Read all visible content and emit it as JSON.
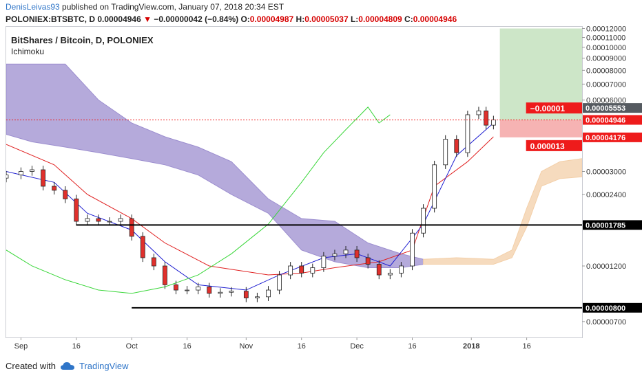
{
  "header": {
    "user": "DenisLeivas93",
    "published_text": " published on TradingView.com, January 07, 2018 20:34 EST",
    "symbol": "POLONIEX:BTSBTC, D",
    "last": "0.00004946",
    "change": "−0.00000042 (−0.84%)",
    "o_label": "O:",
    "o": "0.00004987",
    "h_label": "H:",
    "h": "0.00005037",
    "l_label": "L:",
    "l": "0.00004809",
    "c_label": "C:",
    "c": "0.00004946"
  },
  "footer": {
    "created_with": "Created with",
    "brand": "TradingView"
  },
  "colors": {
    "up": "#ffffff",
    "down": "#e0302c",
    "cloud_bear": "#9c8ecf",
    "cloud_bull": "#f3cfa8",
    "tenkan": "#1f1fd1",
    "kijun": "#e02020",
    "chikou": "#38d638",
    "tp_zone": "#cde6c8",
    "sl_zone": "#f6b3b3",
    "label_red": "#ee1b1b",
    "label_gray": "#555a60"
  },
  "chart_data": {
    "type": "candlestick",
    "title": "BitShares / Bitcoin, D, POLONIEX",
    "indicator": "Ichimoku",
    "ylim": [
      6e-06,
      0.000122
    ],
    "y_scale": "log",
    "y_ticks": [
      "0.00012000",
      "0.00011000",
      "0.00010000",
      "0.00009000",
      "0.00008000",
      "0.00007000",
      "0.00006000",
      "0.00003000",
      "0.00002400",
      "0.00001200",
      "0.00000700"
    ],
    "x_ticks": [
      {
        "label": "Sep",
        "date": "2017-09-01"
      },
      {
        "label": "16",
        "date": "2017-09-16"
      },
      {
        "label": "Oct",
        "date": "2017-10-01"
      },
      {
        "label": "16",
        "date": "2017-10-16"
      },
      {
        "label": "Nov",
        "date": "2017-11-01"
      },
      {
        "label": "16",
        "date": "2017-11-16"
      },
      {
        "label": "Dec",
        "date": "2017-12-01"
      },
      {
        "label": "16",
        "date": "2017-12-16"
      },
      {
        "label": "2018",
        "date": "2018-01-01"
      },
      {
        "label": "16",
        "date": "2018-01-16"
      }
    ],
    "x_range": [
      "2017-08-28",
      "2018-01-31"
    ],
    "close_series": [
      [
        "2017-08-28",
        2.9e-05
      ],
      [
        "2017-09-01",
        3e-05
      ],
      [
        "2017-09-04",
        3.05e-05
      ],
      [
        "2017-09-07",
        2.6e-05
      ],
      [
        "2017-09-10",
        2.5e-05
      ],
      [
        "2017-09-13",
        2.3e-05
      ],
      [
        "2017-09-16",
        1.85e-05
      ],
      [
        "2017-09-19",
        1.9e-05
      ],
      [
        "2017-09-22",
        1.85e-05
      ],
      [
        "2017-09-25",
        1.85e-05
      ],
      [
        "2017-09-28",
        1.9e-05
      ],
      [
        "2017-10-01",
        1.6e-05
      ],
      [
        "2017-10-04",
        1.3e-05
      ],
      [
        "2017-10-07",
        1.2e-05
      ],
      [
        "2017-10-10",
        1e-05
      ],
      [
        "2017-10-13",
        9.5e-06
      ],
      [
        "2017-10-16",
        9.5e-06
      ],
      [
        "2017-10-19",
        9.8e-06
      ],
      [
        "2017-10-22",
        9.2e-06
      ],
      [
        "2017-10-25",
        9.3e-06
      ],
      [
        "2017-10-28",
        9.4e-06
      ],
      [
        "2017-11-01",
        8.8e-06
      ],
      [
        "2017-11-04",
        8.9e-06
      ],
      [
        "2017-11-07",
        9.5e-06
      ],
      [
        "2017-11-10",
        1.1e-05
      ],
      [
        "2017-11-13",
        1.2e-05
      ],
      [
        "2017-11-16",
        1.12e-05
      ],
      [
        "2017-11-19",
        1.18e-05
      ],
      [
        "2017-11-22",
        1.32e-05
      ],
      [
        "2017-11-25",
        1.35e-05
      ],
      [
        "2017-11-28",
        1.4e-05
      ],
      [
        "2017-12-01",
        1.3e-05
      ],
      [
        "2017-12-04",
        1.22e-05
      ],
      [
        "2017-12-07",
        1.1e-05
      ],
      [
        "2017-12-10",
        1.12e-05
      ],
      [
        "2017-12-13",
        1.2e-05
      ],
      [
        "2017-12-16",
        1.65e-05
      ],
      [
        "2017-12-19",
        2.1e-05
      ],
      [
        "2017-12-22",
        3.2e-05
      ],
      [
        "2017-12-25",
        4.1e-05
      ],
      [
        "2017-12-28",
        3.6e-05
      ],
      [
        "2017-12-31",
        5.2e-05
      ],
      [
        "2018-01-03",
        5.4e-05
      ],
      [
        "2018-01-05",
        4.7e-05
      ],
      [
        "2018-01-07",
        4.95e-05
      ]
    ],
    "cloud_bear": {
      "top": [
        [
          "2017-08-28",
          8.5e-05
        ],
        [
          "2017-09-04",
          8.5e-05
        ],
        [
          "2017-09-13",
          8.5e-05
        ],
        [
          "2017-09-22",
          6e-05
        ],
        [
          "2017-10-01",
          4.8e-05
        ],
        [
          "2017-10-10",
          4.2e-05
        ],
        [
          "2017-10-19",
          3.8e-05
        ],
        [
          "2017-10-28",
          3.3e-05
        ],
        [
          "2017-11-07",
          2.3e-05
        ],
        [
          "2017-11-16",
          1.9e-05
        ],
        [
          "2017-11-25",
          1.85e-05
        ],
        [
          "2017-12-04",
          1.5e-05
        ],
        [
          "2017-12-13",
          1.35e-05
        ],
        [
          "2017-12-19",
          1.28e-05
        ]
      ],
      "bottom": [
        [
          "2017-08-28",
          4.3e-05
        ],
        [
          "2017-09-04",
          4e-05
        ],
        [
          "2017-09-13",
          3.8e-05
        ],
        [
          "2017-09-22",
          3.6e-05
        ],
        [
          "2017-10-01",
          3.4e-05
        ],
        [
          "2017-10-10",
          3.2e-05
        ],
        [
          "2017-10-19",
          2.9e-05
        ],
        [
          "2017-10-28",
          2.4e-05
        ],
        [
          "2017-11-07",
          2e-05
        ],
        [
          "2017-11-16",
          1.4e-05
        ],
        [
          "2017-11-25",
          1.25e-05
        ],
        [
          "2017-12-04",
          1.18e-05
        ],
        [
          "2017-12-13",
          1.18e-05
        ],
        [
          "2017-12-19",
          1.22e-05
        ]
      ]
    },
    "cloud_bull": {
      "top": [
        [
          "2017-12-19",
          1.28e-05
        ],
        [
          "2017-12-28",
          1.3e-05
        ],
        [
          "2018-01-07",
          1.28e-05
        ],
        [
          "2018-01-12",
          1.4e-05
        ],
        [
          "2018-01-16",
          2.1e-05
        ],
        [
          "2018-01-20",
          3e-05
        ],
        [
          "2018-01-25",
          3.3e-05
        ],
        [
          "2018-01-31",
          3.4e-05
        ]
      ],
      "bottom": [
        [
          "2017-12-19",
          1.22e-05
        ],
        [
          "2017-12-28",
          1.22e-05
        ],
        [
          "2018-01-07",
          1.22e-05
        ],
        [
          "2018-01-12",
          1.3e-05
        ],
        [
          "2018-01-16",
          1.75e-05
        ],
        [
          "2018-01-20",
          2.6e-05
        ],
        [
          "2018-01-25",
          2.8e-05
        ],
        [
          "2018-01-31",
          2.85e-05
        ]
      ]
    },
    "tenkan": [
      [
        "2017-08-28",
        3e-05
      ],
      [
        "2017-09-10",
        2.7e-05
      ],
      [
        "2017-09-19",
        2e-05
      ],
      [
        "2017-10-01",
        1.7e-05
      ],
      [
        "2017-10-10",
        1.25e-05
      ],
      [
        "2017-10-19",
        1e-05
      ],
      [
        "2017-11-01",
        9.5e-06
      ],
      [
        "2017-11-10",
        1.1e-05
      ],
      [
        "2017-11-22",
        1.3e-05
      ],
      [
        "2017-12-01",
        1.35e-05
      ],
      [
        "2017-12-10",
        1.2e-05
      ],
      [
        "2017-12-19",
        1.8e-05
      ],
      [
        "2017-12-28",
        3.5e-05
      ],
      [
        "2018-01-07",
        4.8e-05
      ]
    ],
    "kijun": [
      [
        "2017-08-28",
        3.9e-05
      ],
      [
        "2017-09-10",
        3.2e-05
      ],
      [
        "2017-09-19",
        2.4e-05
      ],
      [
        "2017-10-01",
        1.9e-05
      ],
      [
        "2017-10-10",
        1.5e-05
      ],
      [
        "2017-10-22",
        1.2e-05
      ],
      [
        "2017-11-07",
        1.1e-05
      ],
      [
        "2017-11-16",
        1.12e-05
      ],
      [
        "2017-11-25",
        1.18e-05
      ],
      [
        "2017-12-07",
        1.25e-05
      ],
      [
        "2017-12-16",
        1.4e-05
      ],
      [
        "2017-12-22",
        2.6e-05
      ],
      [
        "2017-12-31",
        3.3e-05
      ],
      [
        "2018-01-07",
        4.2e-05
      ]
    ],
    "chikou": [
      [
        "2017-08-28",
        1.4e-05
      ],
      [
        "2017-09-04",
        1.2e-05
      ],
      [
        "2017-09-13",
        1.05e-05
      ],
      [
        "2017-09-22",
        9.5e-06
      ],
      [
        "2017-10-01",
        9.2e-06
      ],
      [
        "2017-10-10",
        9.8e-06
      ],
      [
        "2017-10-19",
        1.1e-05
      ],
      [
        "2017-10-28",
        1.35e-05
      ],
      [
        "2017-11-07",
        1.8e-05
      ],
      [
        "2017-11-16",
        2.7e-05
      ],
      [
        "2017-11-22",
        3.6e-05
      ],
      [
        "2017-11-28",
        4.5e-05
      ],
      [
        "2017-12-04",
        5.6e-05
      ],
      [
        "2017-12-07",
        4.8e-05
      ],
      [
        "2017-12-10",
        5.2e-05
      ]
    ],
    "levels": [
      {
        "value": 1.785e-05,
        "label": "0.00001785",
        "from": "2017-09-16",
        "to": "2018-01-31"
      },
      {
        "value": 8e-06,
        "label": "0.00000800",
        "from": "2017-10-01",
        "to": "2018-01-31"
      }
    ],
    "position": {
      "entry": 4.946e-05,
      "target": 0.00012,
      "stop": 4.176e-05,
      "upper": 5.553e-05,
      "start": "2018-01-05",
      "end": "2018-01-31",
      "entry_label": "0.00004946",
      "stop_label": "0.00004176",
      "upper_label": "0.00005553",
      "risk_label": "0.000013",
      "upper_diff_label": "−0.00001"
    }
  }
}
